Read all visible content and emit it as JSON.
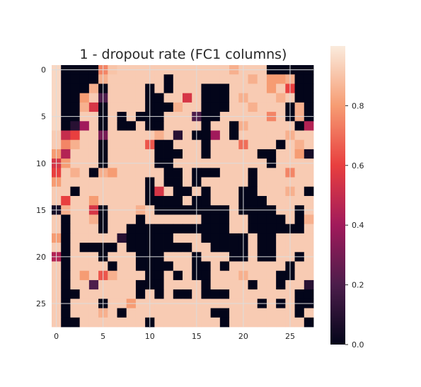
{
  "chart_data": {
    "type": "heatmap",
    "title": "1 - dropout rate (FC1 columns)",
    "xlabel": "",
    "ylabel": "",
    "rows": 28,
    "cols": 28,
    "x_ticks": [
      0,
      5,
      10,
      15,
      20,
      25
    ],
    "y_ticks": [
      0,
      5,
      10,
      15,
      20,
      25
    ],
    "grid": true,
    "colormap": "rocket",
    "colorbar": {
      "vmin": 0.0,
      "vmax": 1.0,
      "ticks": [
        0.0,
        0.2,
        0.4,
        0.6,
        0.8
      ],
      "tick_labels": [
        "0.0",
        "0.2",
        "0.4",
        "0.6",
        "0.8"
      ]
    },
    "colormap_stops": [
      "#03051a",
      "#4c1d4b",
      "#a11a5b",
      "#e83f3f",
      "#f69c73",
      "#faebdd"
    ],
    "values": [
      [
        0.95,
        0.0,
        0.0,
        0.0,
        0.0,
        0.75,
        0.9,
        0.92,
        0.92,
        0.92,
        0.92,
        0.92,
        0.92,
        0.92,
        0.92,
        0.92,
        0.92,
        0.92,
        0.92,
        0.85,
        0.92,
        0.92,
        0.92,
        0.0,
        0.0,
        0.0,
        0.0,
        0.0
      ],
      [
        0.95,
        0.0,
        0.0,
        0.0,
        0.0,
        0.85,
        0.92,
        0.92,
        0.92,
        0.92,
        0.92,
        0.92,
        0.0,
        0.92,
        0.92,
        0.92,
        0.92,
        0.92,
        0.92,
        0.92,
        0.92,
        0.85,
        0.92,
        0.8,
        0.8,
        0.85,
        0.0,
        0.0
      ],
      [
        0.95,
        0.0,
        0.0,
        0.0,
        0.85,
        0.0,
        0.92,
        0.92,
        0.92,
        0.92,
        0.0,
        0.92,
        0.0,
        0.92,
        0.92,
        0.92,
        0.0,
        0.0,
        0.0,
        0.92,
        0.92,
        0.92,
        0.92,
        0.8,
        0.92,
        0.6,
        0.0,
        0.0
      ],
      [
        0.95,
        0.0,
        0.0,
        0.8,
        0.92,
        0.2,
        0.92,
        0.92,
        0.92,
        0.92,
        0.0,
        0.0,
        0.92,
        0.92,
        0.55,
        0.92,
        0.0,
        0.0,
        0.0,
        0.92,
        0.85,
        0.92,
        0.92,
        0.92,
        0.85,
        0.92,
        0.0,
        0.0
      ],
      [
        0.95,
        0.0,
        0.0,
        0.85,
        0.55,
        0.0,
        0.92,
        0.92,
        0.92,
        0.92,
        0.0,
        0.0,
        0.0,
        0.85,
        0.92,
        0.92,
        0.0,
        0.0,
        0.0,
        0.92,
        0.92,
        0.85,
        0.92,
        0.92,
        0.92,
        0.0,
        0.85,
        0.0
      ],
      [
        0.95,
        0.0,
        0.0,
        0.92,
        0.92,
        0.0,
        0.92,
        0.0,
        0.92,
        0.0,
        0.0,
        0.0,
        0.92,
        0.92,
        0.92,
        0.2,
        0.0,
        0.0,
        0.92,
        0.92,
        0.92,
        0.92,
        0.92,
        0.75,
        0.92,
        0.0,
        0.85,
        0.0
      ],
      [
        0.95,
        0.0,
        0.1,
        0.4,
        0.92,
        0.0,
        0.92,
        0.0,
        0.0,
        0.92,
        0.0,
        0.0,
        0.92,
        0.92,
        0.92,
        0.92,
        0.0,
        0.92,
        0.92,
        0.0,
        0.85,
        0.92,
        0.92,
        0.92,
        0.92,
        0.92,
        0.0,
        0.45
      ],
      [
        0.92,
        0.5,
        0.6,
        0.92,
        0.92,
        0.3,
        0.92,
        0.92,
        0.92,
        0.92,
        0.92,
        0.85,
        0.92,
        0.1,
        0.92,
        0.0,
        0.0,
        0.4,
        0.92,
        0.0,
        0.92,
        0.92,
        0.92,
        0.92,
        0.92,
        0.85,
        0.92,
        0.92
      ],
      [
        0.92,
        0.75,
        0.85,
        0.92,
        0.92,
        0.0,
        0.92,
        0.92,
        0.92,
        0.92,
        0.65,
        0.0,
        0.0,
        0.92,
        0.92,
        0.92,
        0.0,
        0.92,
        0.92,
        0.92,
        0.7,
        0.92,
        0.92,
        0.92,
        0.0,
        0.92,
        0.85,
        0.92
      ],
      [
        0.8,
        0.45,
        0.92,
        0.92,
        0.92,
        0.0,
        0.92,
        0.92,
        0.92,
        0.92,
        0.92,
        0.0,
        0.0,
        0.0,
        0.92,
        0.92,
        0.0,
        0.92,
        0.92,
        0.92,
        0.92,
        0.92,
        0.0,
        0.0,
        0.92,
        0.92,
        0.8,
        0.05
      ],
      [
        0.55,
        0.8,
        0.92,
        0.92,
        0.92,
        0.0,
        0.92,
        0.92,
        0.92,
        0.92,
        0.92,
        0.0,
        0.0,
        0.92,
        0.92,
        0.92,
        0.92,
        0.92,
        0.92,
        0.92,
        0.92,
        0.92,
        0.92,
        0.0,
        0.92,
        0.92,
        0.92,
        0.92
      ],
      [
        0.6,
        0.92,
        0.85,
        0.92,
        0.0,
        0.85,
        0.8,
        0.92,
        0.92,
        0.92,
        0.92,
        0.92,
        0.0,
        0.0,
        0.92,
        0.0,
        0.0,
        0.0,
        0.92,
        0.92,
        0.92,
        0.0,
        0.92,
        0.92,
        0.92,
        0.75,
        0.92,
        0.92
      ],
      [
        0.8,
        0.92,
        0.92,
        0.92,
        0.92,
        0.92,
        0.92,
        0.92,
        0.92,
        0.92,
        0.0,
        0.92,
        0.0,
        0.0,
        0.92,
        0.0,
        0.92,
        0.92,
        0.92,
        0.92,
        0.92,
        0.0,
        0.92,
        0.92,
        0.92,
        0.92,
        0.92,
        0.92
      ],
      [
        0.92,
        0.92,
        0.0,
        0.92,
        0.92,
        0.92,
        0.92,
        0.92,
        0.92,
        0.92,
        0.0,
        0.55,
        0.92,
        0.0,
        0.0,
        0.92,
        0.0,
        0.92,
        0.92,
        0.92,
        0.0,
        0.0,
        0.92,
        0.92,
        0.92,
        0.85,
        0.92,
        0.0
      ],
      [
        0.92,
        0.6,
        0.92,
        0.92,
        0.8,
        0.92,
        0.92,
        0.92,
        0.92,
        0.92,
        0.0,
        0.0,
        0.0,
        0.0,
        0.92,
        0.0,
        0.0,
        0.92,
        0.92,
        0.92,
        0.0,
        0.0,
        0.0,
        0.92,
        0.92,
        0.92,
        0.92,
        0.92
      ],
      [
        0.05,
        0.85,
        0.92,
        0.92,
        0.55,
        0.0,
        0.92,
        0.92,
        0.92,
        0.85,
        0.92,
        0.0,
        0.0,
        0.0,
        0.0,
        0.0,
        0.0,
        0.0,
        0.0,
        0.92,
        0.0,
        0.0,
        0.0,
        0.0,
        0.92,
        0.92,
        0.0,
        0.92
      ],
      [
        0.92,
        0.0,
        0.92,
        0.92,
        0.85,
        0.0,
        0.92,
        0.92,
        0.92,
        0.0,
        0.92,
        0.92,
        0.92,
        0.92,
        0.92,
        0.92,
        0.0,
        0.0,
        0.0,
        0.92,
        0.92,
        0.0,
        0.0,
        0.0,
        0.0,
        0.92,
        0.0,
        0.85
      ],
      [
        0.92,
        0.0,
        0.92,
        0.92,
        0.92,
        0.0,
        0.92,
        0.92,
        0.0,
        0.0,
        0.0,
        0.0,
        0.0,
        0.0,
        0.0,
        0.0,
        0.0,
        0.0,
        0.0,
        0.92,
        0.92,
        0.0,
        0.0,
        0.0,
        0.0,
        0.0,
        0.0,
        0.92
      ],
      [
        0.8,
        0.0,
        0.92,
        0.92,
        0.92,
        0.92,
        0.92,
        0.1,
        0.0,
        0.0,
        0.0,
        0.0,
        0.0,
        0.92,
        0.92,
        0.92,
        0.0,
        0.0,
        0.0,
        0.0,
        0.0,
        0.92,
        0.0,
        0.0,
        0.92,
        0.92,
        0.92,
        0.92
      ],
      [
        0.92,
        0.0,
        0.92,
        0.0,
        0.0,
        0.0,
        0.0,
        0.92,
        0.0,
        0.0,
        0.0,
        0.0,
        0.0,
        0.0,
        0.0,
        0.92,
        0.92,
        0.0,
        0.0,
        0.0,
        0.0,
        0.92,
        0.0,
        0.0,
        0.92,
        0.92,
        0.92,
        0.92
      ],
      [
        0.45,
        0.0,
        0.92,
        0.92,
        0.92,
        0.0,
        0.92,
        0.92,
        0.92,
        0.0,
        0.0,
        0.0,
        0.92,
        0.92,
        0.92,
        0.0,
        0.92,
        0.92,
        0.92,
        0.0,
        0.0,
        0.92,
        0.0,
        0.0,
        0.92,
        0.92,
        0.0,
        0.92
      ],
      [
        0.92,
        0.0,
        0.92,
        0.92,
        0.92,
        0.92,
        0.0,
        0.92,
        0.92,
        0.0,
        0.0,
        0.0,
        0.0,
        0.92,
        0.92,
        0.0,
        0.0,
        0.92,
        0.0,
        0.92,
        0.92,
        0.92,
        0.92,
        0.92,
        0.92,
        0.0,
        0.92,
        0.92
      ],
      [
        0.92,
        0.0,
        0.92,
        0.8,
        0.92,
        0.65,
        0.85,
        0.92,
        0.92,
        0.92,
        0.0,
        0.0,
        0.92,
        0.0,
        0.92,
        0.0,
        0.0,
        0.92,
        0.92,
        0.92,
        0.85,
        0.92,
        0.92,
        0.92,
        0.0,
        0.0,
        0.92,
        0.92
      ],
      [
        0.92,
        0.0,
        0.92,
        0.92,
        0.2,
        0.92,
        0.92,
        0.92,
        0.92,
        0.0,
        0.0,
        0.0,
        0.92,
        0.92,
        0.92,
        0.92,
        0.0,
        0.92,
        0.92,
        0.92,
        0.92,
        0.0,
        0.92,
        0.92,
        0.0,
        0.92,
        0.92,
        0.1
      ],
      [
        0.92,
        0.0,
        0.0,
        0.92,
        0.92,
        0.92,
        0.92,
        0.92,
        0.92,
        0.0,
        0.92,
        0.0,
        0.92,
        0.0,
        0.0,
        0.92,
        0.0,
        0.0,
        0.0,
        0.92,
        0.92,
        0.92,
        0.92,
        0.92,
        0.92,
        0.92,
        0.0,
        0.0
      ],
      [
        0.92,
        0.0,
        0.92,
        0.92,
        0.92,
        0.0,
        0.92,
        0.92,
        0.8,
        0.92,
        0.92,
        0.92,
        0.92,
        0.92,
        0.92,
        0.92,
        0.92,
        0.92,
        0.92,
        0.92,
        0.92,
        0.92,
        0.0,
        0.92,
        0.0,
        0.92,
        0.0,
        0.0
      ],
      [
        0.92,
        0.0,
        0.92,
        0.92,
        0.92,
        0.85,
        0.92,
        0.0,
        0.92,
        0.92,
        0.92,
        0.92,
        0.92,
        0.92,
        0.92,
        0.92,
        0.92,
        0.0,
        0.0,
        0.92,
        0.92,
        0.92,
        0.92,
        0.92,
        0.92,
        0.92,
        0.0,
        0.92
      ],
      [
        0.92,
        0.0,
        0.0,
        0.92,
        0.92,
        0.92,
        0.92,
        0.92,
        0.92,
        0.92,
        0.0,
        0.92,
        0.92,
        0.92,
        0.92,
        0.92,
        0.92,
        0.92,
        0.0,
        0.92,
        0.92,
        0.92,
        0.92,
        0.92,
        0.92,
        0.92,
        0.92,
        0.0
      ]
    ]
  }
}
